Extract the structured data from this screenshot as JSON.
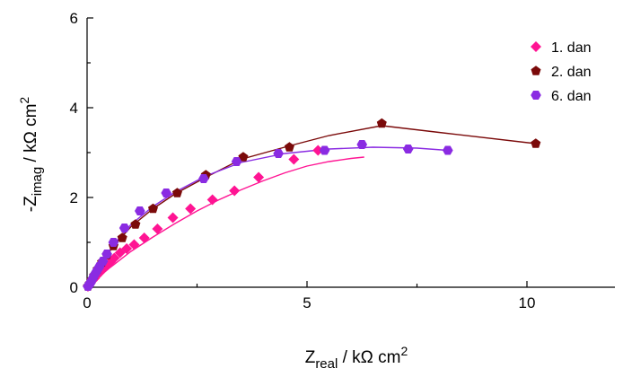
{
  "chart_data": {
    "type": "scatter",
    "xlabel": {
      "main": "Z",
      "sub": "real",
      "unit": " / kΩ cm",
      "sup": "2"
    },
    "ylabel": {
      "main": "-Z",
      "sub": "imag",
      "unit": " / kΩ cm",
      "sup": "2"
    },
    "xlim": [
      0,
      12
    ],
    "ylim": [
      0,
      6
    ],
    "xticks": [
      0,
      5,
      10
    ],
    "yticks": [
      0,
      2,
      4,
      6
    ],
    "grid": false,
    "legend_position": "top-right",
    "series": [
      {
        "name": "1. dan",
        "color": "#ff1493",
        "marker": "diamond",
        "points": [
          [
            0.02,
            0.02
          ],
          [
            0.05,
            0.06
          ],
          [
            0.08,
            0.1
          ],
          [
            0.12,
            0.15
          ],
          [
            0.17,
            0.2
          ],
          [
            0.22,
            0.26
          ],
          [
            0.28,
            0.32
          ],
          [
            0.35,
            0.4
          ],
          [
            0.43,
            0.48
          ],
          [
            0.53,
            0.56
          ],
          [
            0.62,
            0.65
          ],
          [
            0.75,
            0.77
          ],
          [
            0.9,
            0.86
          ],
          [
            1.07,
            0.95
          ],
          [
            1.3,
            1.1
          ],
          [
            1.6,
            1.3
          ],
          [
            1.95,
            1.55
          ],
          [
            2.35,
            1.75
          ],
          [
            2.85,
            1.95
          ],
          [
            3.35,
            2.15
          ],
          [
            3.9,
            2.45
          ],
          [
            4.7,
            2.85
          ],
          [
            5.25,
            3.05
          ]
        ],
        "fit": [
          [
            0,
            0
          ],
          [
            0.5,
            0.42
          ],
          [
            1,
            0.8
          ],
          [
            1.5,
            1.12
          ],
          [
            2,
            1.42
          ],
          [
            2.5,
            1.7
          ],
          [
            3,
            1.95
          ],
          [
            3.5,
            2.17
          ],
          [
            4,
            2.37
          ],
          [
            4.5,
            2.55
          ],
          [
            5,
            2.7
          ],
          [
            5.5,
            2.8
          ],
          [
            6,
            2.87
          ],
          [
            6.3,
            2.9
          ]
        ]
      },
      {
        "name": "2. dan",
        "color": "#7b0a0a",
        "marker": "pentagon",
        "points": [
          [
            0.02,
            0.02
          ],
          [
            0.06,
            0.08
          ],
          [
            0.1,
            0.16
          ],
          [
            0.16,
            0.26
          ],
          [
            0.24,
            0.4
          ],
          [
            0.34,
            0.56
          ],
          [
            0.45,
            0.72
          ],
          [
            0.6,
            0.92
          ],
          [
            0.8,
            1.1
          ],
          [
            1.1,
            1.4
          ],
          [
            1.5,
            1.75
          ],
          [
            2.05,
            2.1
          ],
          [
            2.7,
            2.5
          ],
          [
            3.55,
            2.9
          ],
          [
            4.6,
            3.12
          ],
          [
            6.7,
            3.65
          ],
          [
            10.2,
            3.2
          ]
        ],
        "fit": [
          [
            0,
            0
          ],
          [
            0.3,
            0.5
          ],
          [
            0.6,
            0.92
          ],
          [
            1,
            1.35
          ],
          [
            1.5,
            1.75
          ],
          [
            2,
            2.08
          ],
          [
            2.7,
            2.45
          ],
          [
            3.5,
            2.85
          ],
          [
            4.6,
            3.15
          ],
          [
            5.5,
            3.38
          ],
          [
            6.7,
            3.6
          ],
          [
            8,
            3.45
          ],
          [
            10.2,
            3.2
          ]
        ]
      },
      {
        "name": "6. dan",
        "color": "#8a2be2",
        "marker": "hexagon",
        "points": [
          [
            0.02,
            0.02
          ],
          [
            0.05,
            0.06
          ],
          [
            0.08,
            0.1
          ],
          [
            0.12,
            0.18
          ],
          [
            0.16,
            0.26
          ],
          [
            0.22,
            0.36
          ],
          [
            0.28,
            0.46
          ],
          [
            0.36,
            0.58
          ],
          [
            0.45,
            0.74
          ],
          [
            0.6,
            1.0
          ],
          [
            0.85,
            1.32
          ],
          [
            1.2,
            1.7
          ],
          [
            1.8,
            2.1
          ],
          [
            2.65,
            2.42
          ],
          [
            3.4,
            2.8
          ],
          [
            4.35,
            2.98
          ],
          [
            5.4,
            3.05
          ],
          [
            6.25,
            3.18
          ],
          [
            7.3,
            3.08
          ],
          [
            8.2,
            3.05
          ]
        ],
        "fit": [
          [
            0,
            0
          ],
          [
            0.3,
            0.5
          ],
          [
            0.6,
            0.95
          ],
          [
            1,
            1.4
          ],
          [
            1.5,
            1.8
          ],
          [
            2,
            2.12
          ],
          [
            2.7,
            2.48
          ],
          [
            3.5,
            2.78
          ],
          [
            4.5,
            2.98
          ],
          [
            5.5,
            3.08
          ],
          [
            6.5,
            3.12
          ],
          [
            7.5,
            3.1
          ],
          [
            8.2,
            3.05
          ]
        ]
      }
    ]
  }
}
